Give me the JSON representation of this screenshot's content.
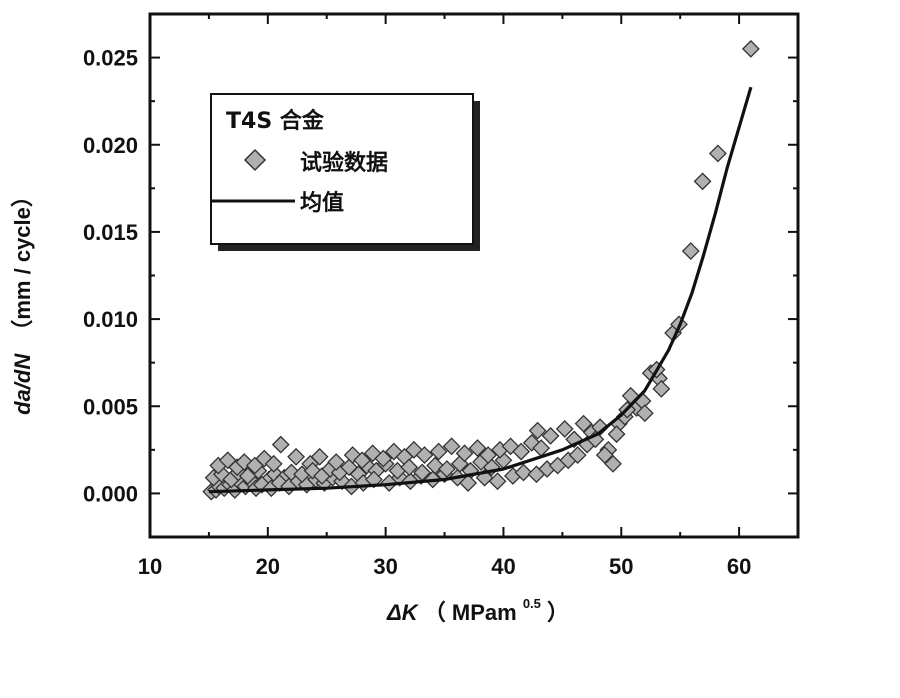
{
  "chart_data": {
    "type": "scatter",
    "xlabel": "ΔK（MPam0.5）",
    "xlabel_parts": {
      "symbol": "ΔK",
      "open": "（",
      "unit": "MPam",
      "exp": "0.5",
      "close": "）"
    },
    "ylabel": "da/dN（mm / cycle）",
    "ylabel_parts": {
      "symbol": "da/dN",
      "unit": "（mm / cycle）"
    },
    "xlim": [
      10,
      65
    ],
    "ylim": [
      -0.0025,
      0.0275
    ],
    "xticks": [
      "10",
      "20",
      "30",
      "40",
      "50",
      "60"
    ],
    "yticks": [
      "0.000",
      "0.005",
      "0.010",
      "0.015",
      "0.020",
      "0.025"
    ],
    "legend": {
      "position": "top-left",
      "title": "T4S 合金",
      "entries": [
        "试验数据",
        "均值"
      ]
    },
    "series": [
      {
        "name": "试验数据",
        "type": "scatter",
        "marker": "diamond",
        "color": "#b0b0b0",
        "points": [
          [
            15.2,
            0.0001
          ],
          [
            15.6,
            0.0002
          ],
          [
            15.9,
            0.0004
          ],
          [
            16.3,
            0.0003
          ],
          [
            16.8,
            0.0005
          ],
          [
            17.2,
            0.0002
          ],
          [
            17.7,
            0.0006
          ],
          [
            18.1,
            0.0004
          ],
          [
            18.6,
            0.0007
          ],
          [
            19.0,
            0.0003
          ],
          [
            15.4,
            0.0009
          ],
          [
            16.1,
            0.0011
          ],
          [
            16.9,
            0.0008
          ],
          [
            17.5,
            0.0012
          ],
          [
            18.3,
            0.001
          ],
          [
            19.2,
            0.0013
          ],
          [
            20.1,
            0.0008
          ],
          [
            20.6,
            0.0011
          ],
          [
            21.4,
            0.0009
          ],
          [
            22.0,
            0.0012
          ],
          [
            15.8,
            0.0016
          ],
          [
            16.6,
            0.0019
          ],
          [
            17.4,
            0.0015
          ],
          [
            18.0,
            0.0018
          ],
          [
            18.9,
            0.0016
          ],
          [
            19.7,
            0.002
          ],
          [
            20.5,
            0.0017
          ],
          [
            21.1,
            0.0028
          ],
          [
            22.4,
            0.0021
          ],
          [
            23.6,
            0.0017
          ],
          [
            19.5,
            0.0005
          ],
          [
            20.3,
            0.0003
          ],
          [
            21.0,
            0.0006
          ],
          [
            21.8,
            0.0004
          ],
          [
            22.6,
            0.0007
          ],
          [
            23.3,
            0.0005
          ],
          [
            24.1,
            0.0008
          ],
          [
            24.8,
            0.0006
          ],
          [
            25.5,
            0.0009
          ],
          [
            26.3,
            0.0007
          ],
          [
            22.9,
            0.0011
          ],
          [
            23.8,
            0.0013
          ],
          [
            24.6,
            0.001
          ],
          [
            25.3,
            0.0014
          ],
          [
            26.1,
            0.0012
          ],
          [
            26.9,
            0.0015
          ],
          [
            27.7,
            0.0011
          ],
          [
            28.4,
            0.0016
          ],
          [
            29.2,
            0.0013
          ],
          [
            30.0,
            0.0017
          ],
          [
            24.4,
            0.0021
          ],
          [
            25.8,
            0.0018
          ],
          [
            27.2,
            0.0022
          ],
          [
            28.0,
            0.0019
          ],
          [
            28.9,
            0.0023
          ],
          [
            29.8,
            0.002
          ],
          [
            30.7,
            0.0024
          ],
          [
            31.6,
            0.0021
          ],
          [
            32.4,
            0.0025
          ],
          [
            33.3,
            0.0022
          ],
          [
            27.1,
            0.0004
          ],
          [
            28.1,
            0.0006
          ],
          [
            29.0,
            0.0008
          ],
          [
            30.3,
            0.0006
          ],
          [
            31.2,
            0.0009
          ],
          [
            32.1,
            0.0007
          ],
          [
            33.0,
            0.001
          ],
          [
            34.0,
            0.0008
          ],
          [
            35.0,
            0.0011
          ],
          [
            36.1,
            0.0009
          ],
          [
            31.0,
            0.0013
          ],
          [
            32.0,
            0.0015
          ],
          [
            33.1,
            0.0012
          ],
          [
            34.2,
            0.0016
          ],
          [
            35.2,
            0.0014
          ],
          [
            36.3,
            0.0017
          ],
          [
            37.2,
            0.0013
          ],
          [
            38.1,
            0.0018
          ],
          [
            39.0,
            0.0015
          ],
          [
            40.0,
            0.0019
          ],
          [
            34.5,
            0.0024
          ],
          [
            35.6,
            0.0027
          ],
          [
            36.7,
            0.0023
          ],
          [
            37.8,
            0.0026
          ],
          [
            38.7,
            0.0022
          ],
          [
            39.7,
            0.0025
          ],
          [
            40.6,
            0.0027
          ],
          [
            41.5,
            0.0024
          ],
          [
            42.4,
            0.0029
          ],
          [
            43.2,
            0.0026
          ],
          [
            37.0,
            0.0006
          ],
          [
            38.4,
            0.0009
          ],
          [
            39.5,
            0.0007
          ],
          [
            40.8,
            0.001
          ],
          [
            41.7,
            0.0012
          ],
          [
            42.8,
            0.0011
          ],
          [
            43.7,
            0.0014
          ],
          [
            44.6,
            0.0016
          ],
          [
            45.5,
            0.0019
          ],
          [
            46.3,
            0.0022
          ],
          [
            42.9,
            0.0036
          ],
          [
            44.0,
            0.0033
          ],
          [
            45.2,
            0.0037
          ],
          [
            46.0,
            0.0031
          ],
          [
            46.8,
            0.004
          ],
          [
            47.5,
            0.0035
          ],
          [
            48.2,
            0.0038
          ],
          [
            48.9,
            0.0025
          ],
          [
            49.3,
            0.0017
          ],
          [
            48.6,
            0.0022
          ],
          [
            47.1,
            0.0028
          ],
          [
            47.8,
            0.0031
          ],
          [
            49.8,
            0.004
          ],
          [
            50.3,
            0.0044
          ],
          [
            50.8,
            0.0056
          ],
          [
            51.3,
            0.0049
          ],
          [
            51.8,
            0.0053
          ],
          [
            52.5,
            0.0069
          ],
          [
            53.2,
            0.0066
          ],
          [
            53.4,
            0.006
          ],
          [
            54.4,
            0.0092
          ],
          [
            54.9,
            0.0097
          ],
          [
            55.9,
            0.0139
          ],
          [
            56.9,
            0.0179
          ],
          [
            58.2,
            0.0195
          ],
          [
            61.0,
            0.0255
          ],
          [
            53.0,
            0.0071
          ],
          [
            52.0,
            0.0046
          ],
          [
            50.5,
            0.0048
          ],
          [
            49.6,
            0.0034
          ]
        ]
      },
      {
        "name": "均值",
        "type": "line",
        "color": "#111111",
        "points": [
          [
            15.0,
            0.0001
          ],
          [
            20.0,
            0.0002
          ],
          [
            25.0,
            0.0003
          ],
          [
            30.0,
            0.0005
          ],
          [
            35.0,
            0.0008
          ],
          [
            40.0,
            0.0014
          ],
          [
            45.0,
            0.0025
          ],
          [
            48.0,
            0.0034
          ],
          [
            50.0,
            0.0045
          ],
          [
            52.0,
            0.0059
          ],
          [
            54.0,
            0.0082
          ],
          [
            55.0,
            0.0097
          ],
          [
            56.0,
            0.0115
          ],
          [
            57.0,
            0.0137
          ],
          [
            58.0,
            0.0161
          ],
          [
            59.0,
            0.0187
          ],
          [
            60.0,
            0.021
          ],
          [
            61.0,
            0.0233
          ]
        ]
      }
    ]
  }
}
